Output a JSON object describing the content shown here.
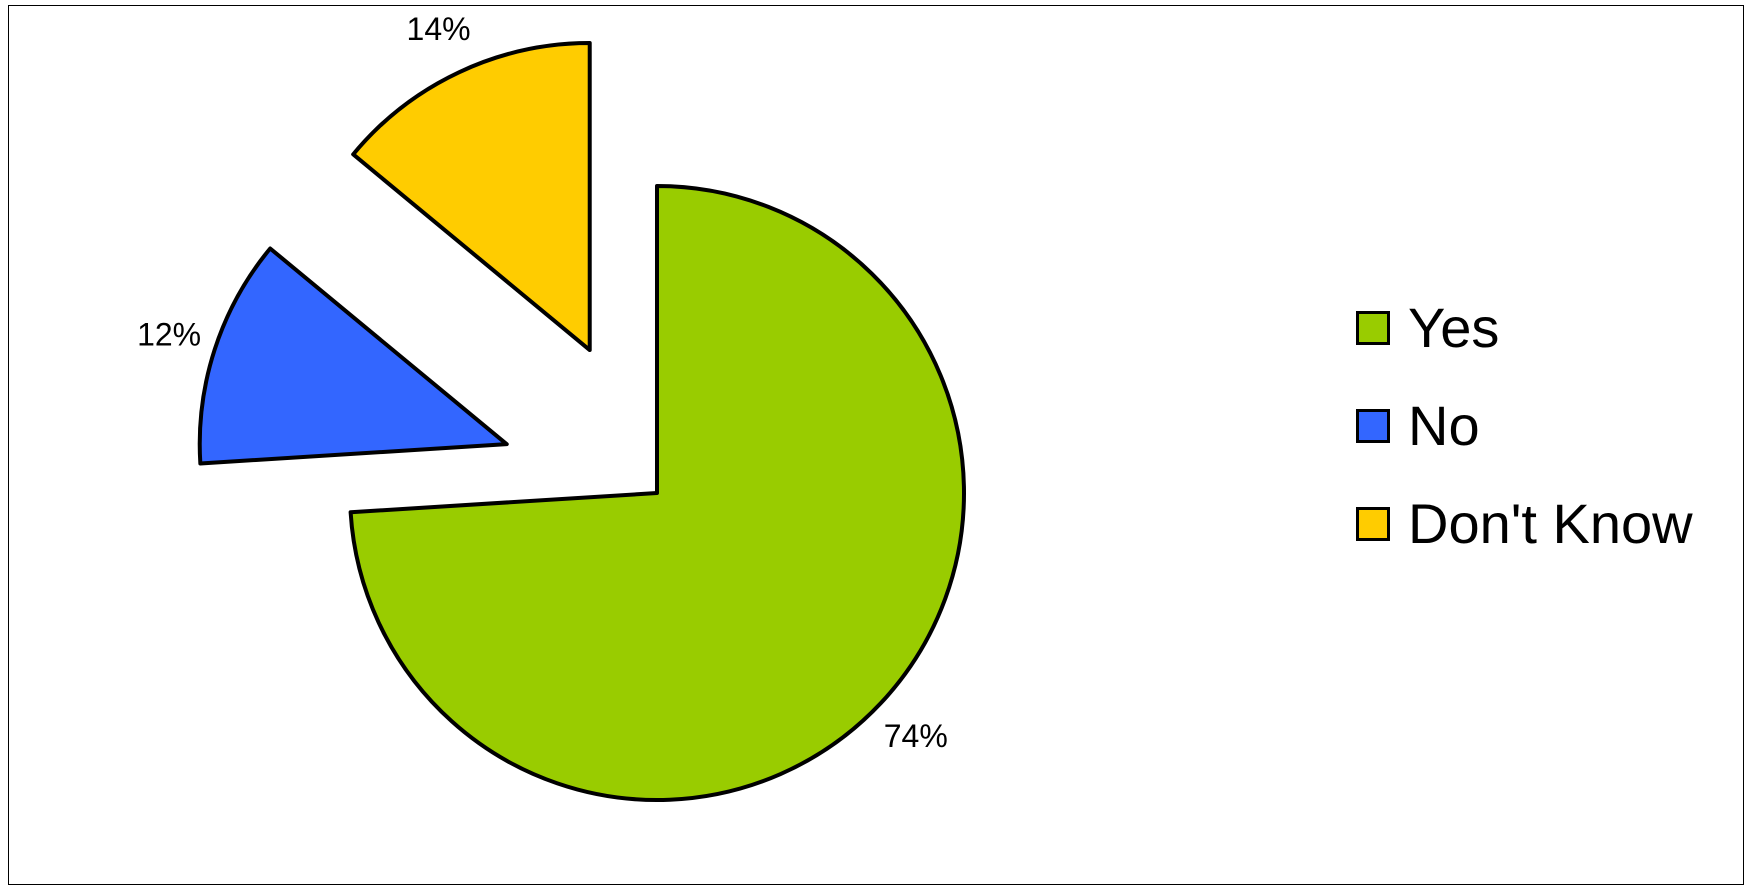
{
  "chart_data": {
    "type": "pie",
    "title": "",
    "categories": [
      "Yes",
      "No",
      "Don't Know"
    ],
    "values": [
      74,
      12,
      14
    ],
    "value_labels": [
      "74%",
      "12%",
      "14%"
    ],
    "colors": [
      "#99CC00",
      "#3366FF",
      "#FFCC00"
    ],
    "exploded": [
      false,
      true,
      true
    ],
    "legend_position": "right",
    "start_angle_deg": 0,
    "direction": "clockwise"
  }
}
